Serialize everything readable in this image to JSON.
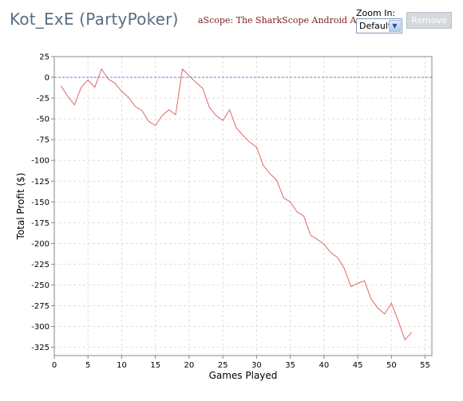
{
  "header": {
    "title": "Kot_ExE (PartyPoker)",
    "app_link": "aScope: The SharkScope Android App",
    "zoom_label": "Zoom In:",
    "zoom_value": "Default",
    "remove_label": "Remove"
  },
  "colors": {
    "series": "#e06666",
    "zero_line": "#7777cc",
    "grid": "#dddddd"
  },
  "chart_data": {
    "type": "line",
    "xlabel": "Games Played",
    "ylabel": "Total Profit ($)",
    "xlim": [
      0,
      56
    ],
    "ylim": [
      -335,
      25
    ],
    "x_ticks": [
      0,
      5,
      10,
      15,
      20,
      25,
      30,
      35,
      40,
      45,
      50,
      55
    ],
    "y_ticks": [
      25,
      0,
      -25,
      -50,
      -75,
      -100,
      -125,
      -150,
      -175,
      -200,
      -225,
      -250,
      -275,
      -300,
      -325
    ],
    "grid": true,
    "series": [
      {
        "x": [
          1,
          2,
          3,
          4,
          5,
          6,
          7,
          8,
          9,
          10,
          11,
          12,
          13,
          14,
          15,
          16,
          17,
          18,
          19,
          20,
          21,
          22,
          23,
          24,
          25,
          26,
          27,
          28,
          29,
          30,
          31,
          32,
          33,
          34,
          35,
          36,
          37,
          38,
          39,
          40,
          41,
          42,
          43,
          44,
          45,
          46,
          47,
          48,
          49,
          50,
          51,
          52,
          53
        ],
        "y": [
          -10,
          -23,
          -33,
          -12,
          -3,
          -12,
          10,
          -2,
          -7,
          -17,
          -24,
          -35,
          -40,
          -53,
          -58,
          -46,
          -39,
          -45,
          10,
          2,
          -6,
          -13,
          -36,
          -46,
          -52,
          -39,
          -61,
          -70,
          -78,
          -84,
          -106,
          -116,
          -124,
          -145,
          -150,
          -162,
          -167,
          -190,
          -195,
          -201,
          -211,
          -217,
          -230,
          -252,
          -248,
          -245,
          -267,
          -278,
          -285,
          -272,
          -293,
          -316,
          -307
        ]
      }
    ]
  }
}
